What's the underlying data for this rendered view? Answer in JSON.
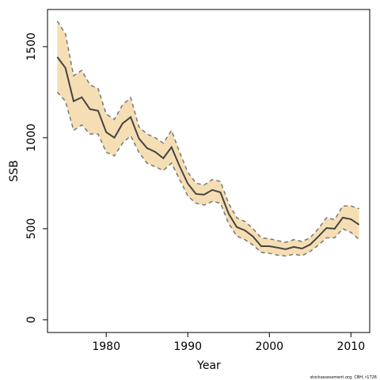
{
  "chart_data": {
    "type": "line",
    "xlabel": "Year",
    "ylabel": "SSB",
    "note": "stockassessment.org, CBH, r1726",
    "x": [
      1974,
      1975,
      1976,
      1977,
      1978,
      1979,
      1980,
      1981,
      1982,
      1983,
      1984,
      1985,
      1986,
      1987,
      1988,
      1989,
      1990,
      1991,
      1992,
      1993,
      1994,
      1995,
      1996,
      1997,
      1998,
      1999,
      2000,
      2001,
      2002,
      2003,
      2004,
      2005,
      2006,
      2007,
      2008,
      2009,
      2010,
      2011
    ],
    "values": [
      1443,
      1383,
      1200,
      1222,
      1157,
      1148,
      1030,
      1000,
      1078,
      1113,
      996,
      943,
      922,
      887,
      948,
      843,
      748,
      691,
      687,
      713,
      700,
      583,
      509,
      491,
      457,
      404,
      404,
      396,
      387,
      400,
      391,
      413,
      457,
      504,
      500,
      561,
      552,
      522
    ],
    "upper": [
      1640,
      1570,
      1340,
      1370,
      1290,
      1270,
      1130,
      1100,
      1180,
      1220,
      1060,
      1020,
      1000,
      970,
      1040,
      920,
      810,
      750,
      740,
      770,
      760,
      640,
      560,
      540,
      500,
      450,
      445,
      435,
      425,
      440,
      430,
      450,
      500,
      560,
      550,
      625,
      625,
      610
    ],
    "lower": [
      1250,
      1200,
      1040,
      1070,
      1020,
      1020,
      920,
      900,
      970,
      1010,
      920,
      860,
      840,
      820,
      860,
      770,
      680,
      640,
      630,
      650,
      640,
      530,
      460,
      440,
      410,
      370,
      365,
      355,
      350,
      360,
      352,
      375,
      410,
      450,
      450,
      500,
      480,
      440
    ],
    "color": "#444444",
    "band_color": "#f5deb3",
    "bound_color": "#777777",
    "xlim": [
      1972.8,
      2012.3
    ],
    "ylim": [
      -70,
      1704
    ],
    "xticks": [
      1980,
      1990,
      2000,
      2010
    ],
    "yticks": [
      0,
      500,
      1000,
      1500
    ]
  }
}
